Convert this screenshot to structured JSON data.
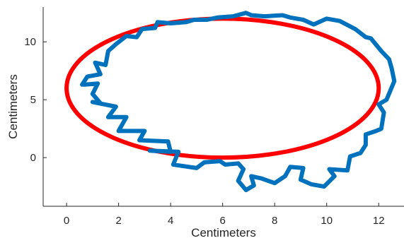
{
  "chart_data": {
    "type": "line",
    "xlabel": "Centimeters",
    "ylabel": "Centimeters",
    "xlim": [
      -0.9,
      13.0
    ],
    "ylim": [
      -4.2,
      13.0
    ],
    "xticks": [
      0,
      2,
      4,
      6,
      8,
      10,
      12
    ],
    "yticks": [
      0,
      5,
      10
    ],
    "grid": false,
    "series": [
      {
        "color": "#ff0000",
        "kind": "ellipse",
        "center": [
          6,
          6
        ],
        "radius_x": 6,
        "radius_y": 6
      },
      {
        "color": "#0072bd",
        "kind": "irregular-closed-curve",
        "x": [
          0.7,
          1.2,
          1.0,
          1.3,
          1.0,
          1.9,
          1.6,
          2.3,
          2.0,
          3.0,
          2.8,
          3.9,
          4.0,
          3.2,
          4.3,
          4.1,
          5.0,
          5.3,
          5.9,
          6.1,
          6.6,
          6.8,
          6.6,
          6.9,
          7.2,
          7.1,
          7.5,
          8.0,
          8.4,
          8.6,
          9.1,
          9.0,
          9.4,
          9.9,
          10.3,
          10.1,
          10.8,
          10.9,
          11.3,
          11.5,
          11.5,
          11.9,
          12.1,
          12.2,
          12.0,
          12.3,
          12.6,
          12.5,
          12.4,
          12.1,
          11.7,
          11.5,
          11.1,
          10.5,
          10.0,
          9.5,
          9.1,
          8.6,
          8.3,
          7.6,
          7.1,
          6.9,
          6.4,
          5.8,
          5.4,
          4.9,
          4.6,
          4.0,
          3.5,
          3.4,
          2.9,
          2.7,
          2.3,
          1.9,
          1.6,
          1.5,
          1.1,
          1.3,
          0.8,
          0.6
        ],
        "y": [
          6.3,
          6.4,
          5.5,
          4.7,
          4.8,
          4.4,
          3.5,
          3.5,
          2.3,
          2.3,
          1.5,
          1.4,
          0.5,
          0.6,
          0.5,
          -0.6,
          -0.9,
          -0.4,
          -0.3,
          -0.6,
          -0.5,
          -1.0,
          -2.0,
          -2.8,
          -2.4,
          -1.6,
          -1.8,
          -2.2,
          -1.6,
          -0.8,
          -0.9,
          -1.9,
          -2.3,
          -2.5,
          -1.6,
          -1.0,
          -1.1,
          0.1,
          0.4,
          1.1,
          2.0,
          2.3,
          2.5,
          3.9,
          4.6,
          5.0,
          6.6,
          7.7,
          8.5,
          9.2,
          10.3,
          10.4,
          11.1,
          11.8,
          12.0,
          11.5,
          11.9,
          12.1,
          12.3,
          12.2,
          12.3,
          12.5,
          12.2,
          12.1,
          11.9,
          11.9,
          11.7,
          11.6,
          11.7,
          11.2,
          11.1,
          10.4,
          10.5,
          9.8,
          9.2,
          8.0,
          8.2,
          7.2,
          7.0,
          6.3
        ]
      }
    ]
  }
}
